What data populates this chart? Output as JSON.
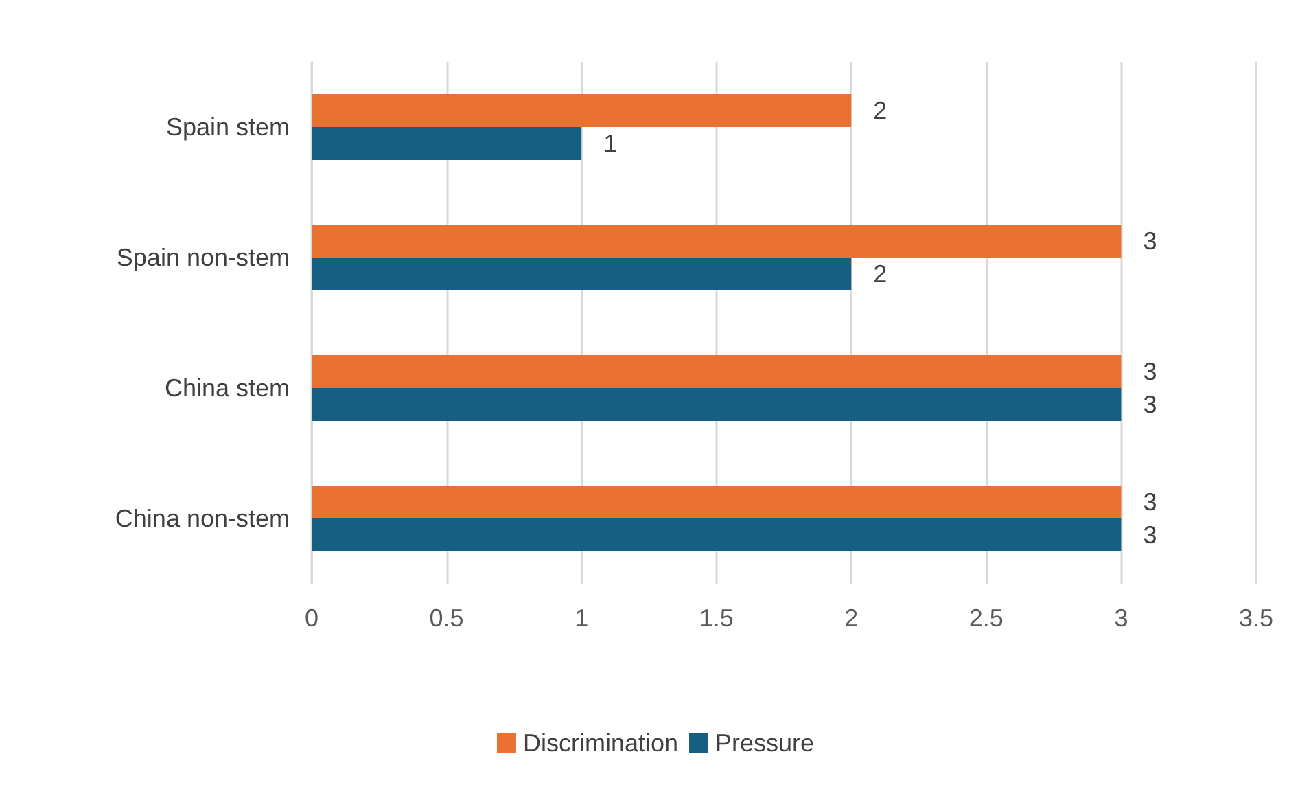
{
  "chart_data": {
    "type": "bar",
    "orientation": "horizontal",
    "categories": [
      "Spain stem",
      "Spain non-stem",
      "China stem",
      "China non-stem"
    ],
    "series": [
      {
        "name": "Discrimination",
        "color": "#e97132",
        "values": [
          2,
          3,
          3,
          3
        ]
      },
      {
        "name": "Pressure",
        "color": "#156082",
        "values": [
          1,
          2,
          3,
          3
        ]
      }
    ],
    "xlim": [
      0,
      3.5
    ],
    "xticks": [
      0,
      0.5,
      1,
      1.5,
      2,
      2.5,
      3,
      3.5
    ],
    "grid": "x",
    "legend": "bottom",
    "data_labels": true
  }
}
